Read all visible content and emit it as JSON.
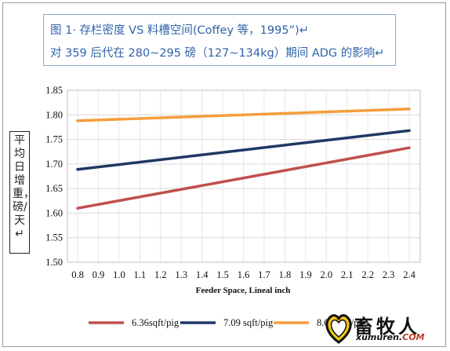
{
  "title_box": {
    "line1": "图 1· 存栏密度 VS 料槽空间(Coffey 等，1995”)↵",
    "line2": "对 359 后代在 280~295 磅（127~134kg）期间 ADG 的影响↵"
  },
  "y_axis_title": "平均日增重，磅/天↵",
  "watermark": {
    "text": "畜牧人",
    "url_main": "xumuren.",
    "url_domain": "COM"
  },
  "chart_data": {
    "type": "line",
    "xlabel": "Feeder Space, Lineal inch",
    "ylabel": "平均日增重，磅/天↵",
    "x": [
      0.8,
      0.9,
      1.0,
      1.1,
      1.2,
      1.3,
      1.4,
      1.5,
      1.6,
      1.7,
      1.8,
      1.9,
      2.0,
      2.1,
      2.2,
      2.3,
      2.4
    ],
    "x_tick_labels": [
      "0.8",
      "0.9",
      "1.0",
      "1.1",
      "1.2",
      "1.3",
      "1.4",
      "1.5",
      "1.6",
      "1.7",
      "1.8",
      "1.9",
      "2.0",
      "2.1",
      "2.2",
      "2.3",
      "2.4"
    ],
    "ylim": [
      1.5,
      1.85
    ],
    "y_ticks": [
      1.5,
      1.55,
      1.6,
      1.65,
      1.7,
      1.75,
      1.8,
      1.85
    ],
    "y_tick_labels": [
      "1.50",
      "1.55",
      "1.60",
      "1.65",
      "1.70",
      "1.75",
      "1.80",
      "1.85"
    ],
    "grid": true,
    "legend_position": "bottom",
    "series": [
      {
        "name": "6.36sqft/pig",
        "color": "#c0504d",
        "x_start": 0.8,
        "y_start": 1.61,
        "x_end": 2.4,
        "y_end": 1.733
      },
      {
        "name": "7.09 sqft/pig",
        "color": "#1f3864",
        "x_start": 0.8,
        "y_start": 1.689,
        "x_end": 2.4,
        "y_end": 1.768
      },
      {
        "name": "8.02 sqft/pig",
        "color": "#f59d3d",
        "x_start": 0.8,
        "y_start": 1.788,
        "x_end": 2.4,
        "y_end": 1.812
      }
    ]
  }
}
